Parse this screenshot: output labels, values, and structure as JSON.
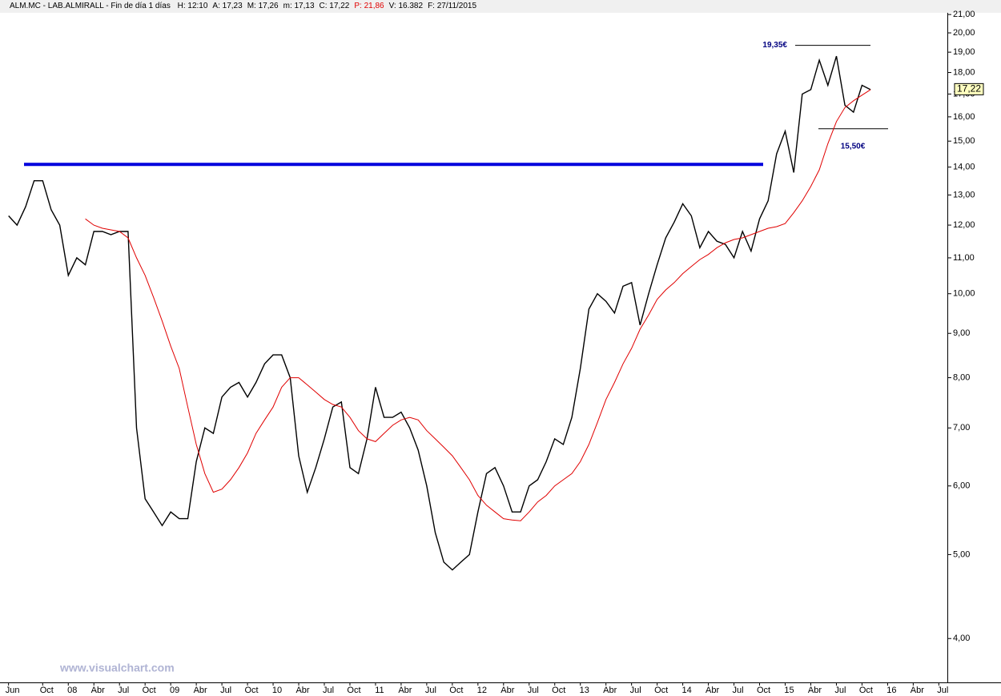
{
  "chart_data": {
    "type": "line",
    "title": "ALM.MC - LAB.ALMIRALL - Fin de día 1 días",
    "quote": [
      {
        "text": "H: 12:10",
        "color": "#000000"
      },
      {
        "text": "A: 17,23",
        "color": "#000000"
      },
      {
        "text": "M: 17,26",
        "color": "#000000"
      },
      {
        "text": "m: 17,13",
        "color": "#000000"
      },
      {
        "text": "C: 17,22",
        "color": "#000000"
      },
      {
        "text": "P: 21,86",
        "color": "#e00000"
      },
      {
        "text": "V: 16.382",
        "color": "#000000"
      },
      {
        "text": "F: 27/11/2015",
        "color": "#000000"
      }
    ],
    "watermark": "www.visualchart.com",
    "log_scale": true,
    "x": [
      "2007-06",
      "2007-07",
      "2007-08",
      "2007-09",
      "2007-10",
      "2007-11",
      "2007-12",
      "2008-01",
      "2008-02",
      "2008-03",
      "2008-04",
      "2008-05",
      "2008-06",
      "2008-07",
      "2008-08",
      "2008-09",
      "2008-10",
      "2008-11",
      "2008-12",
      "2009-01",
      "2009-02",
      "2009-03",
      "2009-04",
      "2009-05",
      "2009-06",
      "2009-07",
      "2009-08",
      "2009-09",
      "2009-10",
      "2009-11",
      "2009-12",
      "2010-01",
      "2010-02",
      "2010-03",
      "2010-04",
      "2010-05",
      "2010-06",
      "2010-07",
      "2010-08",
      "2010-09",
      "2010-10",
      "2010-11",
      "2010-12",
      "2011-01",
      "2011-02",
      "2011-03",
      "2011-04",
      "2011-05",
      "2011-06",
      "2011-07",
      "2011-08",
      "2011-09",
      "2011-10",
      "2011-11",
      "2011-12",
      "2012-01",
      "2012-02",
      "2012-03",
      "2012-04",
      "2012-05",
      "2012-06",
      "2012-07",
      "2012-08",
      "2012-09",
      "2012-10",
      "2012-11",
      "2012-12",
      "2013-01",
      "2013-02",
      "2013-03",
      "2013-04",
      "2013-05",
      "2013-06",
      "2013-07",
      "2013-08",
      "2013-09",
      "2013-10",
      "2013-11",
      "2013-12",
      "2014-01",
      "2014-02",
      "2014-03",
      "2014-04",
      "2014-05",
      "2014-06",
      "2014-07",
      "2014-08",
      "2014-09",
      "2014-10",
      "2014-11",
      "2014-12",
      "2015-01",
      "2015-02",
      "2015-03",
      "2015-04",
      "2015-05",
      "2015-06",
      "2015-07",
      "2015-08",
      "2015-09",
      "2015-10",
      "2015-11"
    ],
    "series": [
      {
        "color": "#000000",
        "values": [
          12.3,
          12.0,
          12.6,
          13.5,
          13.5,
          12.5,
          12.0,
          10.5,
          11.0,
          10.8,
          11.8,
          11.8,
          11.7,
          11.8,
          11.8,
          7.0,
          5.8,
          5.6,
          5.4,
          5.6,
          5.5,
          5.5,
          6.4,
          7.0,
          6.9,
          7.6,
          7.8,
          7.9,
          7.6,
          7.9,
          8.3,
          8.5,
          8.5,
          8.0,
          6.5,
          5.9,
          6.3,
          6.8,
          7.4,
          7.5,
          6.3,
          6.2,
          6.8,
          7.8,
          7.2,
          7.2,
          7.3,
          7.0,
          6.6,
          6.0,
          5.3,
          4.9,
          4.8,
          4.9,
          5.0,
          5.6,
          6.2,
          6.3,
          6.0,
          5.6,
          5.6,
          6.0,
          6.1,
          6.4,
          6.8,
          6.7,
          7.2,
          8.2,
          9.6,
          10.0,
          9.8,
          9.5,
          10.2,
          10.3,
          9.2,
          10.0,
          10.8,
          11.6,
          12.1,
          12.7,
          12.3,
          11.3,
          11.8,
          11.5,
          11.4,
          11.0,
          11.8,
          11.2,
          12.2,
          12.8,
          14.5,
          15.4,
          13.8,
          17.0,
          17.2,
          18.6,
          17.4,
          18.8,
          16.5,
          16.2,
          17.4,
          17.2
        ]
      },
      {
        "color": "#e00000",
        "values": [
          null,
          null,
          null,
          null,
          null,
          null,
          null,
          null,
          null,
          12.2,
          12.0,
          11.9,
          11.85,
          11.8,
          11.6,
          11.0,
          10.5,
          9.9,
          9.3,
          8.7,
          8.2,
          7.4,
          6.7,
          6.2,
          5.9,
          5.95,
          6.1,
          6.3,
          6.55,
          6.9,
          7.15,
          7.4,
          7.8,
          8.0,
          8.0,
          7.85,
          7.7,
          7.55,
          7.45,
          7.4,
          7.2,
          6.95,
          6.8,
          6.75,
          6.9,
          7.05,
          7.15,
          7.2,
          7.15,
          6.95,
          6.8,
          6.65,
          6.5,
          6.3,
          6.1,
          5.85,
          5.7,
          5.6,
          5.5,
          5.48,
          5.47,
          5.6,
          5.75,
          5.85,
          6.0,
          6.1,
          6.2,
          6.4,
          6.7,
          7.1,
          7.55,
          7.9,
          8.3,
          8.65,
          9.1,
          9.45,
          9.85,
          10.1,
          10.3,
          10.55,
          10.75,
          10.95,
          11.1,
          11.3,
          11.45,
          11.55,
          11.6,
          11.7,
          11.8,
          11.9,
          11.95,
          12.05,
          12.4,
          12.8,
          13.3,
          13.9,
          14.9,
          15.8,
          16.4,
          16.7,
          16.95,
          17.2
        ]
      }
    ],
    "support": {
      "value": 14.1,
      "color": "#0000dd"
    },
    "levels": [
      {
        "value": 19.35,
        "label": "19,35€"
      },
      {
        "value": 15.5,
        "label": "15,50€"
      }
    ],
    "last_price": {
      "value": 17.22,
      "label": "17,22"
    },
    "xlim": [
      "2007-05",
      "2016-08"
    ],
    "xticks": [
      {
        "value": "2007-06",
        "label": "Jun"
      },
      {
        "value": "2007-10",
        "label": "Oct"
      },
      {
        "value": "2008-01",
        "label": "08"
      },
      {
        "value": "2008-04",
        "label": "Abr"
      },
      {
        "value": "2008-07",
        "label": "Jul"
      },
      {
        "value": "2008-10",
        "label": "Oct"
      },
      {
        "value": "2009-01",
        "label": "09"
      },
      {
        "value": "2009-04",
        "label": "Abr"
      },
      {
        "value": "2009-07",
        "label": "Jul"
      },
      {
        "value": "2009-10",
        "label": "Oct"
      },
      {
        "value": "2010-01",
        "label": "10"
      },
      {
        "value": "2010-04",
        "label": "Abr"
      },
      {
        "value": "2010-07",
        "label": "Jul"
      },
      {
        "value": "2010-10",
        "label": "Oct"
      },
      {
        "value": "2011-01",
        "label": "11"
      },
      {
        "value": "2011-04",
        "label": "Abr"
      },
      {
        "value": "2011-07",
        "label": "Jul"
      },
      {
        "value": "2011-10",
        "label": "Oct"
      },
      {
        "value": "2012-01",
        "label": "12"
      },
      {
        "value": "2012-04",
        "label": "Abr"
      },
      {
        "value": "2012-07",
        "label": "Jul"
      },
      {
        "value": "2012-10",
        "label": "Oct"
      },
      {
        "value": "2013-01",
        "label": "13"
      },
      {
        "value": "2013-04",
        "label": "Abr"
      },
      {
        "value": "2013-07",
        "label": "Jul"
      },
      {
        "value": "2013-10",
        "label": "Oct"
      },
      {
        "value": "2014-01",
        "label": "14"
      },
      {
        "value": "2014-04",
        "label": "Abr"
      },
      {
        "value": "2014-07",
        "label": "Jul"
      },
      {
        "value": "2014-10",
        "label": "Oct"
      },
      {
        "value": "2015-01",
        "label": "15"
      },
      {
        "value": "2015-04",
        "label": "Abr"
      },
      {
        "value": "2015-07",
        "label": "Jul"
      },
      {
        "value": "2015-10",
        "label": "Oct"
      },
      {
        "value": "2016-01",
        "label": "16"
      },
      {
        "value": "2016-04",
        "label": "Abr"
      },
      {
        "value": "2016-07",
        "label": "Jul"
      }
    ],
    "ylim": [
      3.56,
      21.05
    ],
    "yticks": [
      {
        "value": 4,
        "label": "4,00"
      },
      {
        "value": 5,
        "label": "5,00"
      },
      {
        "value": 6,
        "label": "6,00"
      },
      {
        "value": 7,
        "label": "7,00"
      },
      {
        "value": 8,
        "label": "8,00"
      },
      {
        "value": 9,
        "label": "9,00"
      },
      {
        "value": 10,
        "label": "10,00"
      },
      {
        "value": 11,
        "label": "11,00"
      },
      {
        "value": 12,
        "label": "12,00"
      },
      {
        "value": 13,
        "label": "13,00"
      },
      {
        "value": 14,
        "label": "14,00"
      },
      {
        "value": 15,
        "label": "15,00"
      },
      {
        "value": 16,
        "label": "16,00"
      },
      {
        "value": 17,
        "label": "17,00"
      },
      {
        "value": 18,
        "label": "18,00"
      },
      {
        "value": 19,
        "label": "19,00"
      },
      {
        "value": 20,
        "label": "20,00"
      },
      {
        "value": 21,
        "label": "21,00"
      }
    ]
  }
}
